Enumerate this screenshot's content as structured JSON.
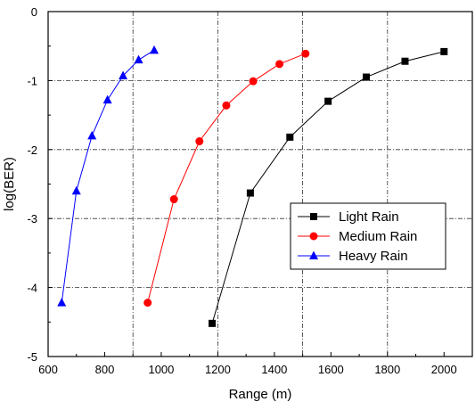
{
  "chart_data": {
    "type": "line",
    "title": "",
    "xlabel": "Range (m)",
    "ylabel": "log(BER)",
    "xlim": [
      600,
      2100
    ],
    "ylim": [
      -5,
      0
    ],
    "xticks": [
      600,
      800,
      1000,
      1200,
      1400,
      1600,
      1800,
      2000
    ],
    "yticks": [
      0,
      -1,
      -2,
      -3,
      -4,
      -5
    ],
    "xtick_labels": [
      "600",
      "800",
      "1000",
      "1200",
      "1400",
      "1600",
      "1800",
      "2000"
    ],
    "ytick_labels": [
      "0",
      "-1",
      "-2",
      "-3",
      "-4",
      "-5"
    ],
    "grid": "dashed-dotted at x = 900, 1200, 1500, 1800 and y = -1, -2, -3, -4",
    "legend_position": "lower-right",
    "series": [
      {
        "name": "Light Rain",
        "color": "#000000",
        "marker": "square",
        "x": [
          1180,
          1315,
          1455,
          1590,
          1725,
          1862,
          2000
        ],
        "y": [
          -4.52,
          -2.63,
          -1.82,
          -1.3,
          -0.95,
          -0.72,
          -0.58
        ]
      },
      {
        "name": "Medium Rain",
        "color": "#ff0000",
        "marker": "circle",
        "x": [
          952,
          1045,
          1135,
          1230,
          1325,
          1418,
          1510
        ],
        "y": [
          -4.22,
          -2.72,
          -1.88,
          -1.36,
          -1.01,
          -0.76,
          -0.61
        ]
      },
      {
        "name": "Heavy Rain",
        "color": "#0000ff",
        "marker": "triangle",
        "x": [
          648,
          700,
          755,
          810,
          865,
          920,
          975
        ],
        "y": [
          -4.22,
          -2.6,
          -1.8,
          -1.28,
          -0.93,
          -0.7,
          -0.56
        ]
      }
    ]
  }
}
